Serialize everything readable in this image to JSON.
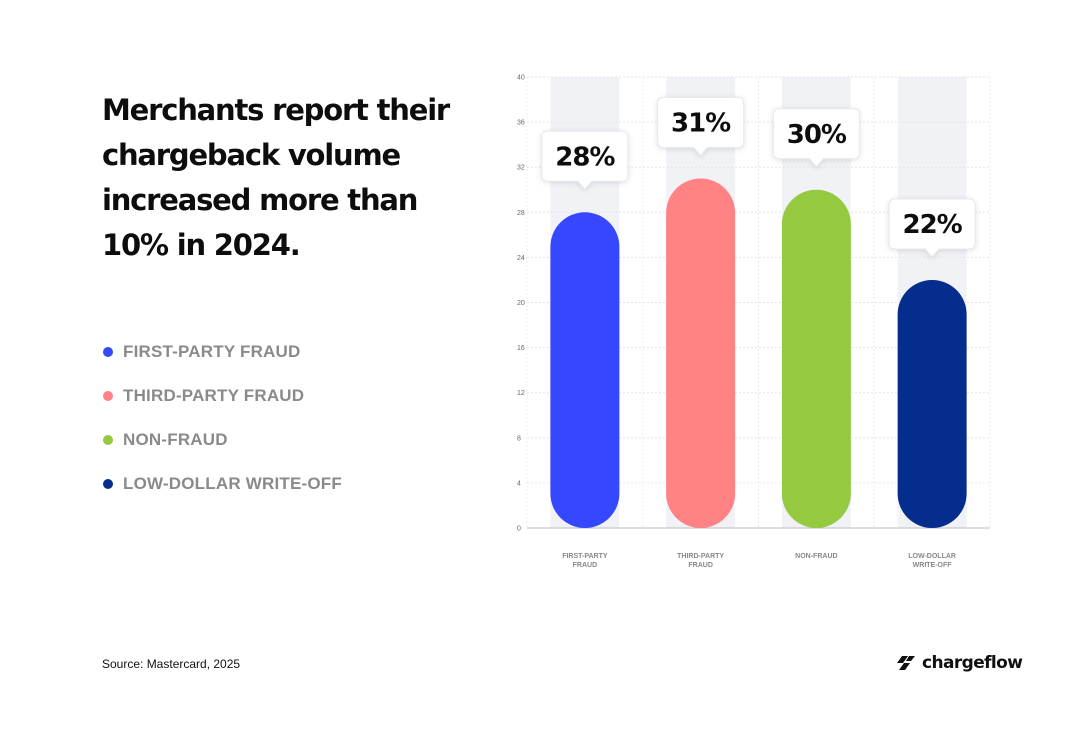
{
  "headline": [
    "Merchants report their",
    "chargeback volume",
    "increased more than",
    "10% in 2024."
  ],
  "legend": [
    {
      "label": "FIRST-PARTY FRAUD",
      "color": "#3548ff"
    },
    {
      "label": "THIRD-PARTY FRAUD",
      "color": "#ff8285"
    },
    {
      "label": "NON-FRAUD",
      "color": "#95c940"
    },
    {
      "label": "LOW-DOLLAR WRITE-OFF",
      "color": "#042d8e"
    }
  ],
  "source": "Source: Mastercard, 2025",
  "brand": {
    "name": "chargeflow",
    "icon": "chargeflow-logo-icon"
  },
  "chart_data": {
    "type": "bar",
    "categories": [
      [
        "FIRST-PARTY",
        "FRAUD"
      ],
      [
        "THIRD-PARTY",
        "FRAUD"
      ],
      [
        "NON-FRAUD"
      ],
      [
        "LOW-DOLLAR",
        "WRITE-OFF"
      ]
    ],
    "values": [
      28,
      31,
      30,
      22
    ],
    "value_labels": [
      "28%",
      "31%",
      "30%",
      "22%"
    ],
    "colors": [
      "#3548ff",
      "#ff8285",
      "#95c940",
      "#042d8e"
    ],
    "yticks": [
      0,
      4,
      8,
      12,
      16,
      20,
      24,
      28,
      32,
      36,
      40
    ],
    "ylim": [
      0,
      40
    ],
    "grid": true,
    "title": "",
    "xlabel": "",
    "ylabel": ""
  }
}
